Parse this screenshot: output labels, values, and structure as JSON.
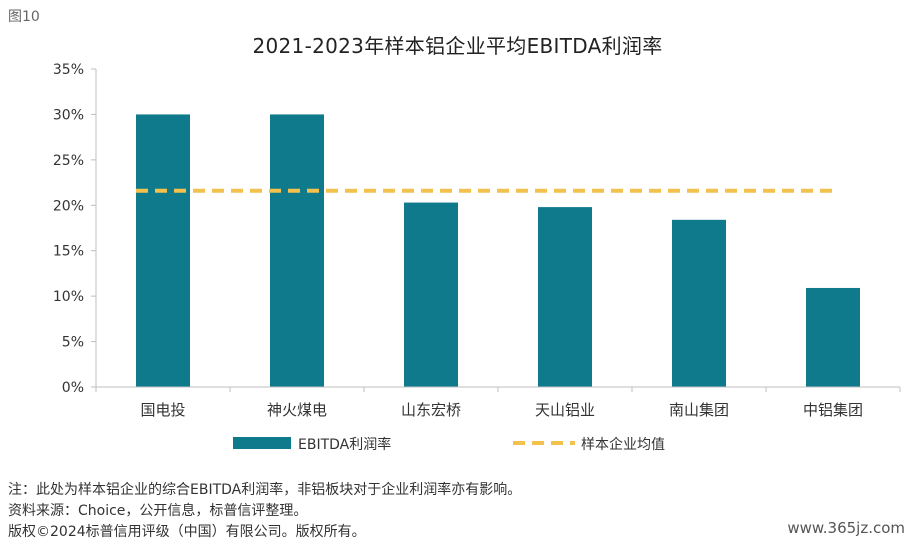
{
  "figure_label": "图10",
  "chart_data": {
    "type": "bar",
    "title": "2021-2023年样本铝企业平均EBITDA利润率",
    "categories": [
      "国电投",
      "神火煤电",
      "山东宏桥",
      "天山铝业",
      "南山集团",
      "中铝集团"
    ],
    "series": [
      {
        "name": "EBITDA利润率",
        "type": "bar",
        "color": "#0e7a8c",
        "values": [
          30.0,
          30.0,
          20.3,
          19.8,
          18.4,
          10.9
        ]
      },
      {
        "name": "样本企业均值",
        "type": "line",
        "style": "dashed",
        "color": "#f2c14e",
        "values": [
          21.6,
          21.6,
          21.6,
          21.6,
          21.6,
          21.6
        ]
      }
    ],
    "ylim": [
      0,
      35
    ],
    "yticks": [
      0,
      5,
      10,
      15,
      20,
      25,
      30,
      35
    ],
    "ytick_labels": [
      "0%",
      "5%",
      "10%",
      "15%",
      "20%",
      "25%",
      "30%",
      "35%"
    ],
    "grid": false,
    "legend_position": "bottom"
  },
  "notes": {
    "note": "注：此处为样本铝企业的综合EBITDA利润率，非铝板块对于企业利润率亦有影响。",
    "source": "资料来源：Choice，公开信息，标普信评整理。",
    "copyright": "版权©2024标普信用评级（中国）有限公司。版权所有。"
  },
  "watermark": "www.365jz.com"
}
